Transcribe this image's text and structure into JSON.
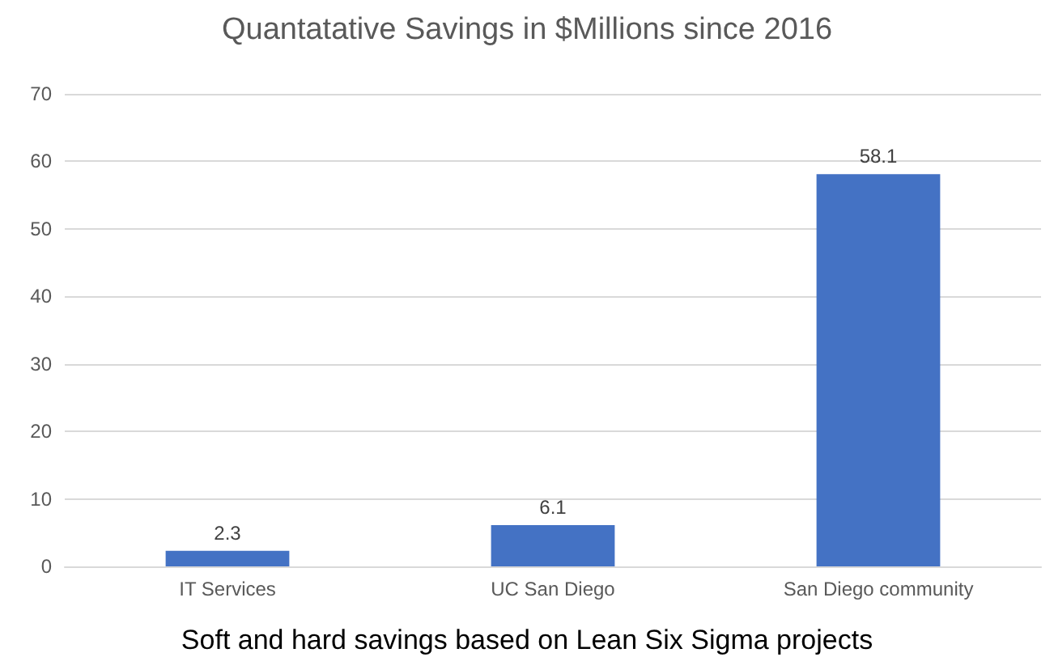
{
  "chart_data": {
    "type": "bar",
    "title": "Quantatative Savings in $Millions since 2016",
    "categories": [
      "IT Services",
      "UC San Diego",
      "San Diego community"
    ],
    "values": [
      2.3,
      6.1,
      58.1
    ],
    "color": "#4472c4",
    "ylim": [
      0,
      70
    ],
    "yticks": [
      0,
      10,
      20,
      30,
      40,
      50,
      60,
      70
    ],
    "grid": "y",
    "data_labels": true,
    "annotations": [
      "Soft and hard savings based on Lean Six Sigma projects"
    ]
  }
}
